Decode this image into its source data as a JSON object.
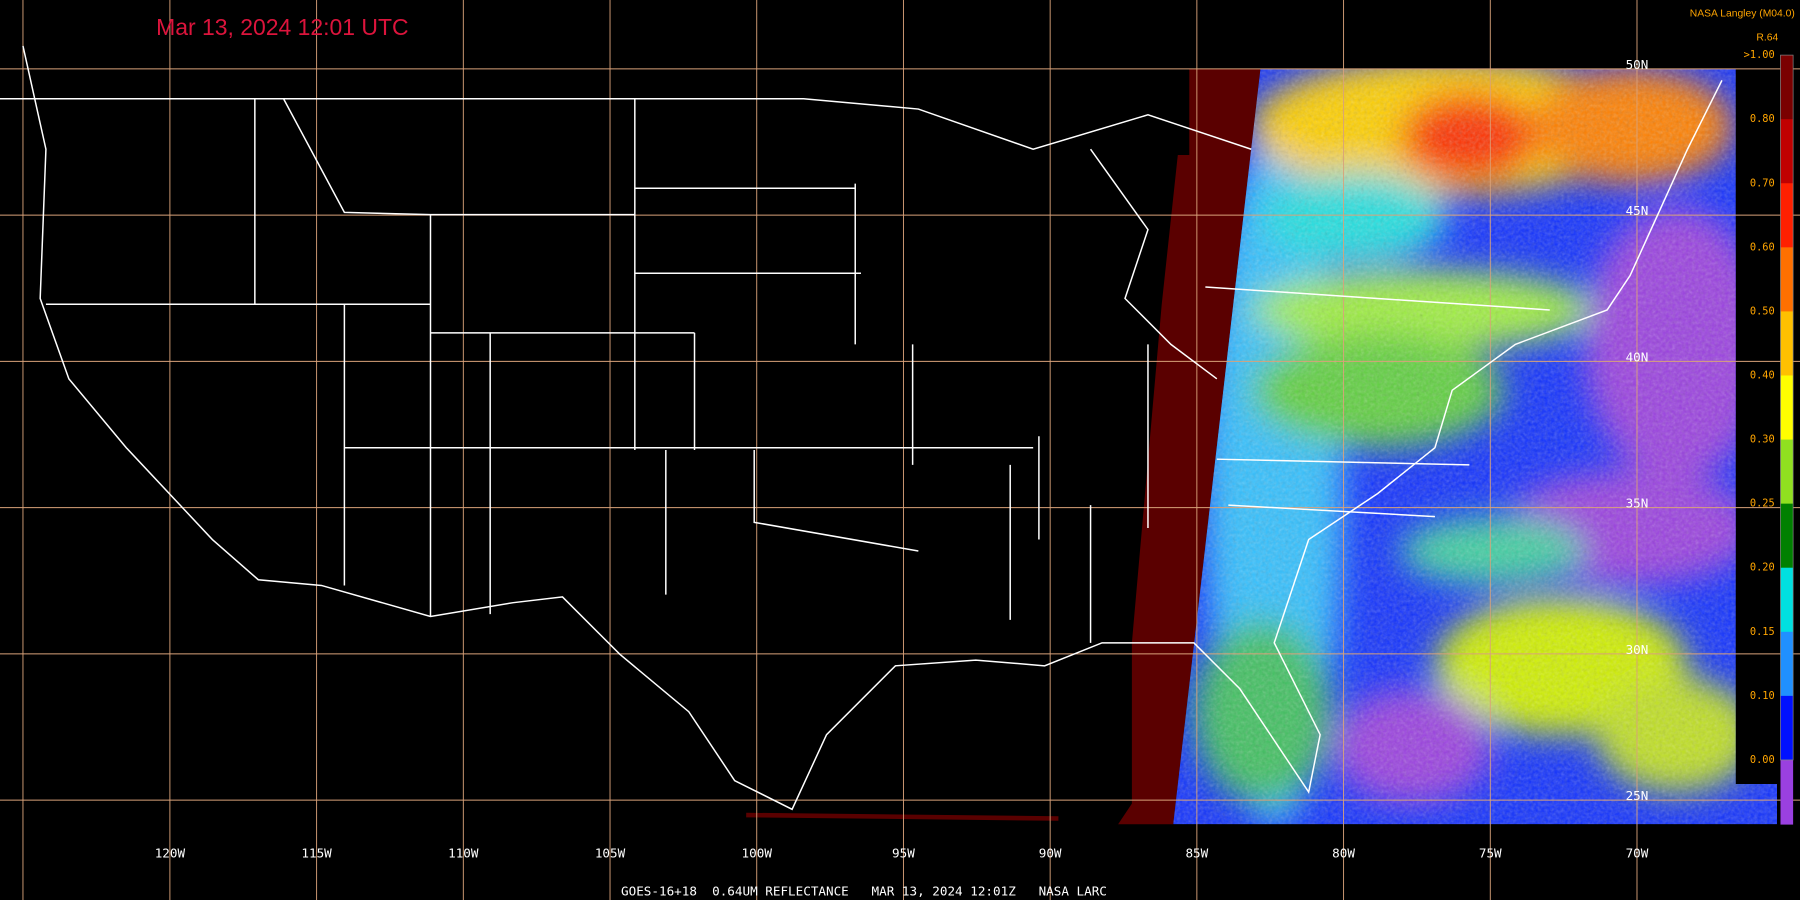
{
  "header": {
    "title": "Mar 13, 2024 12:01 UTC",
    "source": "NASA Langley (M04.0)",
    "product": "R.64"
  },
  "colorbar": {
    "labels": [
      ">1.00",
      "0.80",
      "0.70",
      "0.60",
      "0.50",
      "0.40",
      "0.30",
      "0.25",
      "0.20",
      "0.15",
      "0.10",
      "0.00"
    ],
    "colors": [
      "#7a0000",
      "#c00000",
      "#ff2000",
      "#ff7000",
      "#ffc000",
      "#ffff00",
      "#90e020",
      "#008000",
      "#00e0e0",
      "#2090ff",
      "#0010ff",
      "#9a40e0"
    ]
  },
  "map": {
    "longitude_labels": [
      "120W",
      "115W",
      "110W",
      "105W",
      "100W",
      "95W",
      "90W",
      "85W",
      "80W",
      "75W",
      "70W"
    ],
    "latitude_labels": [
      "50N",
      "45N",
      "40N",
      "35N",
      "30N",
      "25N"
    ]
  },
  "footer": {
    "text": "GOES-16+18  0.64UM REFLECTANCE   MAR 13, 2024 12:01Z   NASA LARC"
  }
}
